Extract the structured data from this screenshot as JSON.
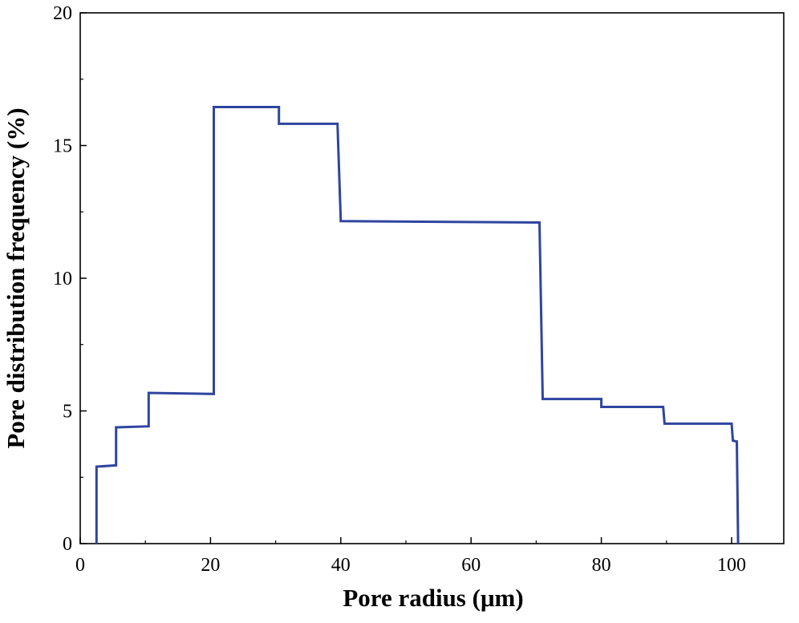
{
  "chart_data": {
    "type": "line",
    "xlabel": "Pore radius (μm)",
    "ylabel": "Pore distribution frequency (%)",
    "xlim": [
      0,
      110
    ],
    "ylim": [
      0,
      20
    ],
    "x_ticks": [
      0,
      20,
      40,
      60,
      80,
      100
    ],
    "y_ticks": [
      0,
      5,
      10,
      15,
      20
    ],
    "grid": false,
    "line_color": "#2f45a0",
    "series": [
      {
        "points": [
          [
            2.5,
            0
          ],
          [
            2.5,
            2.9
          ],
          [
            5.5,
            2.95
          ],
          [
            5.5,
            4.38
          ],
          [
            10.5,
            4.42
          ],
          [
            10.5,
            5.68
          ],
          [
            20.5,
            5.64
          ],
          [
            20.5,
            16.45
          ],
          [
            30.5,
            16.45
          ],
          [
            30.5,
            15.82
          ],
          [
            39.5,
            15.82
          ],
          [
            40.0,
            12.15
          ],
          [
            70.5,
            12.1
          ],
          [
            71.0,
            5.45
          ],
          [
            80.0,
            5.45
          ],
          [
            80.0,
            5.15
          ],
          [
            89.5,
            5.15
          ],
          [
            89.7,
            4.52
          ],
          [
            100.0,
            4.52
          ],
          [
            100.2,
            3.88
          ],
          [
            100.8,
            3.85
          ],
          [
            101.0,
            0
          ]
        ]
      }
    ]
  }
}
